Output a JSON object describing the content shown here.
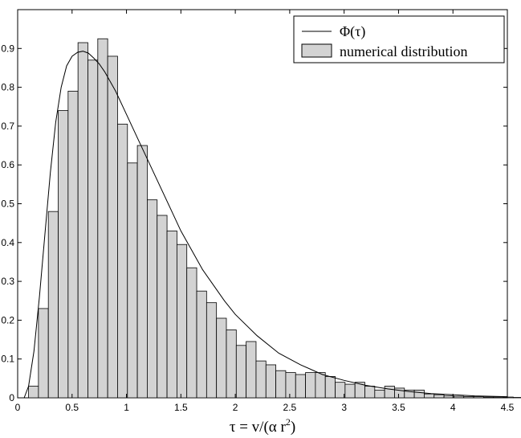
{
  "chart_data": {
    "type": "bar",
    "xlabel": "τ = v/(α r²)",
    "xlabel_main": "τ = v/(α r",
    "xlabel_sup": "2",
    "xlabel_tail": ")",
    "ylabel": "",
    "xlim": [
      0,
      4.5
    ],
    "ylim": [
      0,
      1
    ],
    "xticks": [
      "0",
      "0.5",
      "1",
      "1.5",
      "2",
      "2.5",
      "3",
      "3.5",
      "4",
      "4.5"
    ],
    "yticks": [
      "0",
      "0.1",
      "0.2",
      "0.3",
      "0.4",
      "0.5",
      "0.6",
      "0.7",
      "0.8",
      "0.9"
    ],
    "legend_position": "top-right",
    "grid": false,
    "bar_color": "#d3d3d3",
    "series": [
      {
        "name": "numerical distribution",
        "kind": "histogram",
        "bin_width": 0.0909,
        "bins_start": 0.1,
        "values": [
          0.03,
          0.23,
          0.48,
          0.74,
          0.79,
          0.915,
          0.87,
          0.925,
          0.88,
          0.705,
          0.605,
          0.65,
          0.51,
          0.47,
          0.43,
          0.395,
          0.335,
          0.275,
          0.245,
          0.205,
          0.175,
          0.135,
          0.145,
          0.095,
          0.085,
          0.07,
          0.065,
          0.06,
          0.065,
          0.065,
          0.055,
          0.04,
          0.035,
          0.04,
          0.03,
          0.02,
          0.03,
          0.025,
          0.02,
          0.02,
          0.01,
          0.008,
          0.005,
          0.004,
          0.003,
          0.003,
          0.002,
          0.002,
          0.002,
          0.001
        ]
      },
      {
        "name": "Φ(τ)",
        "kind": "line",
        "x": [
          0.06,
          0.1,
          0.15,
          0.2,
          0.25,
          0.3,
          0.35,
          0.4,
          0.45,
          0.5,
          0.55,
          0.6,
          0.65,
          0.7,
          0.75,
          0.8,
          0.9,
          1.0,
          1.1,
          1.2,
          1.3,
          1.4,
          1.5,
          1.6,
          1.7,
          1.8,
          1.9,
          2.0,
          2.2,
          2.4,
          2.6,
          2.8,
          3.0,
          3.2,
          3.4,
          3.6,
          3.8,
          4.0,
          4.2,
          4.5
        ],
        "y": [
          0.0,
          0.03,
          0.12,
          0.26,
          0.42,
          0.58,
          0.71,
          0.8,
          0.855,
          0.88,
          0.89,
          0.893,
          0.888,
          0.875,
          0.86,
          0.84,
          0.79,
          0.73,
          0.67,
          0.61,
          0.55,
          0.49,
          0.43,
          0.38,
          0.33,
          0.29,
          0.25,
          0.215,
          0.16,
          0.115,
          0.085,
          0.06,
          0.045,
          0.032,
          0.023,
          0.016,
          0.011,
          0.008,
          0.005,
          0.003
        ]
      }
    ]
  }
}
